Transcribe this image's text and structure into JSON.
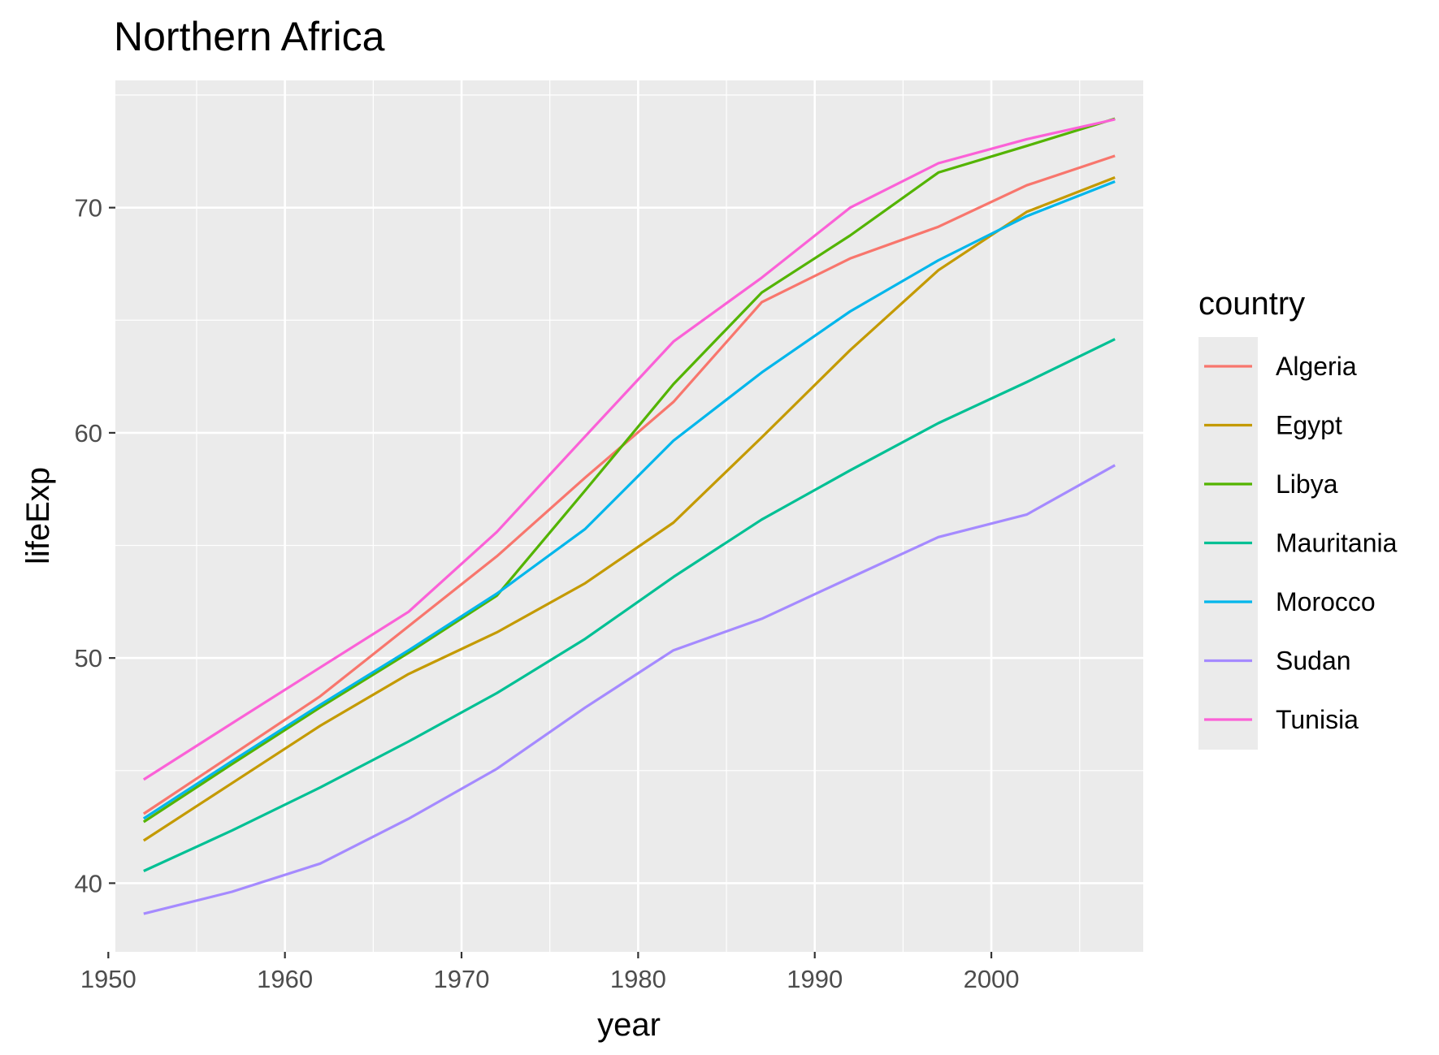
{
  "chart_data": {
    "type": "line",
    "title": "Northern Africa",
    "xlabel": "year",
    "ylabel": "lifeExp",
    "xlim": [
      1950.4,
      2008.6
    ],
    "ylim": [
      36.95,
      75.65
    ],
    "x_ticks": [
      1950,
      1960,
      1970,
      1980,
      1990,
      2000
    ],
    "y_ticks": [
      40,
      50,
      60,
      70
    ],
    "grid": true,
    "legend_title": "country",
    "legend_position": "right",
    "x": [
      1952,
      1957,
      1962,
      1967,
      1972,
      1977,
      1982,
      1987,
      1992,
      1997,
      2002,
      2007
    ],
    "series": [
      {
        "name": "Algeria",
        "color": "#F8766D",
        "values": [
          43.08,
          45.69,
          48.3,
          51.41,
          54.52,
          58.01,
          61.37,
          65.8,
          67.74,
          69.15,
          70.99,
          72.3
        ]
      },
      {
        "name": "Egypt",
        "color": "#C49A00",
        "values": [
          41.89,
          44.44,
          46.99,
          49.29,
          51.14,
          53.32,
          56.01,
          59.8,
          63.67,
          67.22,
          69.81,
          71.34
        ]
      },
      {
        "name": "Libya",
        "color": "#53B400",
        "values": [
          42.72,
          45.29,
          47.81,
          50.23,
          52.77,
          57.44,
          62.16,
          66.23,
          68.76,
          71.56,
          72.74,
          73.95
        ]
      },
      {
        "name": "Mauritania",
        "color": "#00C094",
        "values": [
          40.54,
          42.34,
          44.25,
          46.29,
          48.44,
          50.85,
          53.6,
          56.15,
          58.33,
          60.43,
          62.25,
          64.16
        ]
      },
      {
        "name": "Morocco",
        "color": "#00B6EB",
        "values": [
          42.87,
          45.42,
          47.92,
          50.34,
          52.86,
          55.73,
          59.65,
          62.68,
          65.39,
          67.66,
          69.62,
          71.16
        ]
      },
      {
        "name": "Sudan",
        "color": "#A58AFF",
        "values": [
          38.64,
          39.62,
          40.87,
          42.86,
          45.08,
          47.8,
          50.34,
          51.74,
          53.56,
          55.37,
          56.37,
          58.56
        ]
      },
      {
        "name": "Tunisia",
        "color": "#FB61D7",
        "values": [
          44.6,
          47.1,
          49.58,
          52.05,
          55.6,
          59.84,
          64.05,
          66.89,
          70.0,
          71.97,
          73.04,
          73.92
        ]
      }
    ]
  }
}
